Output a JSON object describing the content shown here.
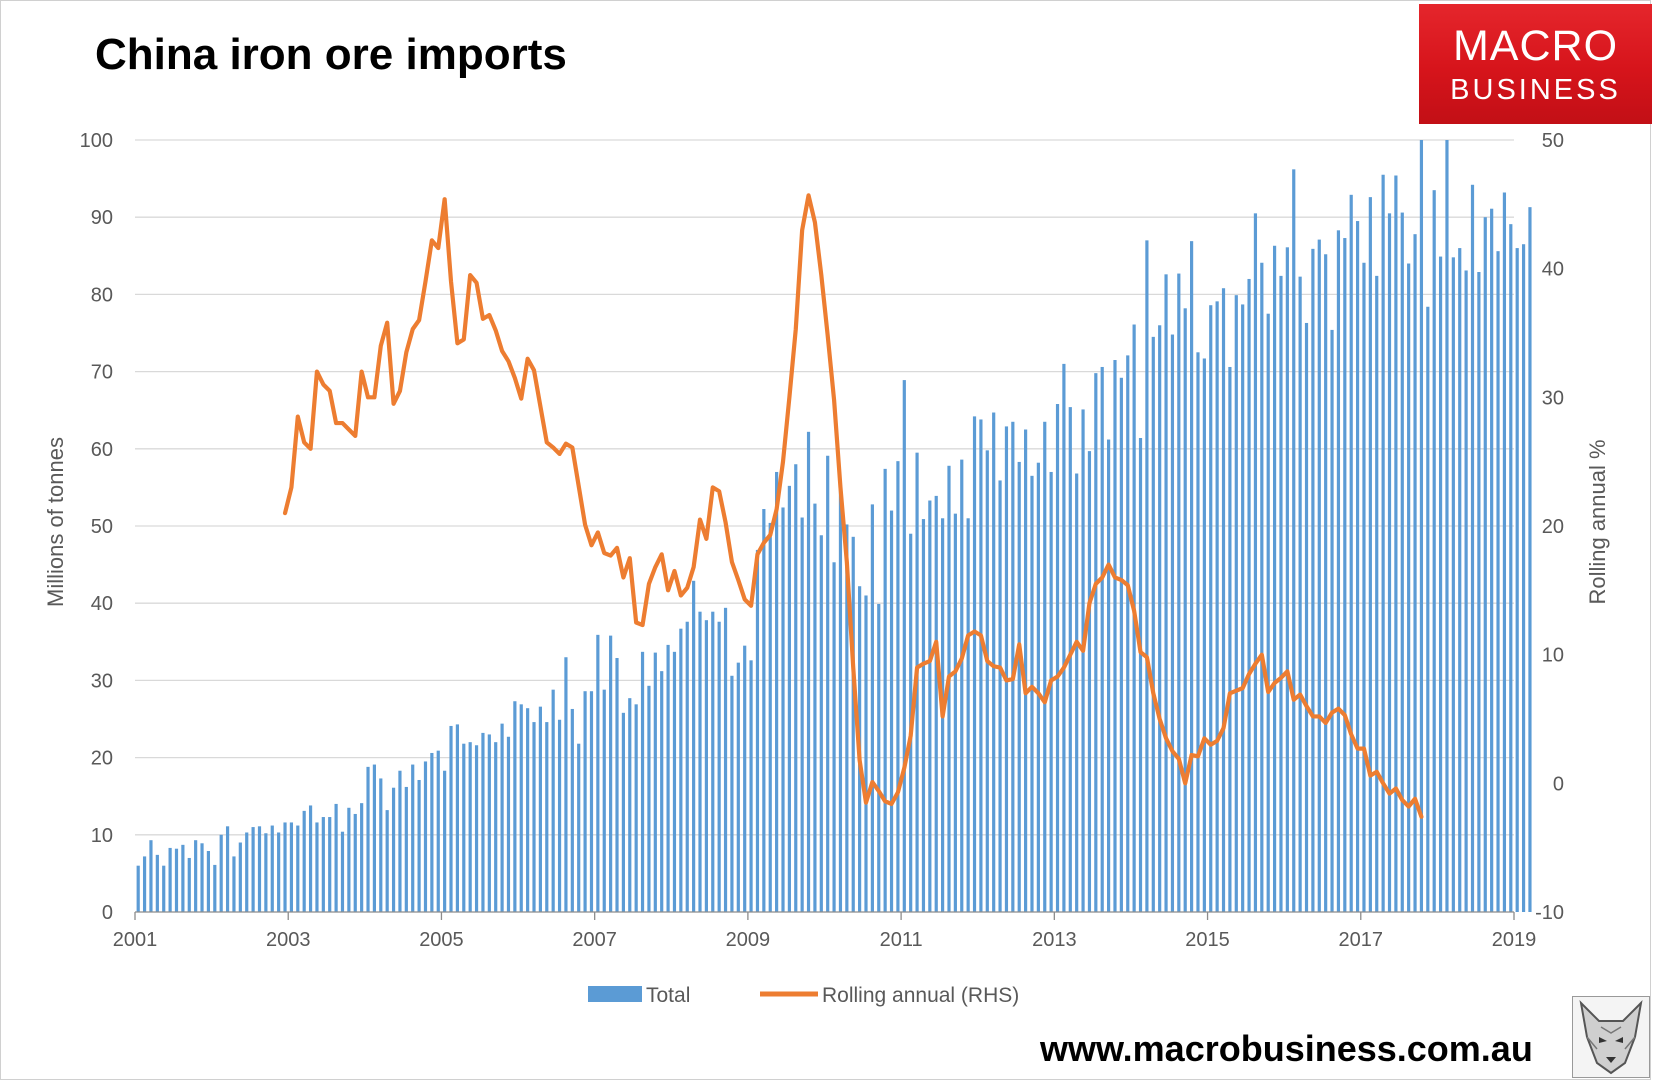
{
  "title": "China iron ore imports",
  "logo": {
    "line1": "MACRO",
    "line2": "BUSINESS"
  },
  "website": "www.macrobusiness.com.au",
  "icons": {
    "logo": "macrobusiness-logo",
    "mascot": "wolf-head-icon"
  },
  "chart_data": {
    "type": "bar+line",
    "x_range": [
      2001,
      2019
    ],
    "x_ticks": [
      "2001",
      "2003",
      "2005",
      "2007",
      "2009",
      "2011",
      "2013",
      "2015",
      "2017",
      "2019"
    ],
    "ylabel": "Millions of tonnes",
    "y2label": "Rolling annual %",
    "ylim": [
      0,
      100
    ],
    "y2lim": [
      -10,
      50
    ],
    "y_ticks": [
      "0",
      "10",
      "20",
      "30",
      "40",
      "50",
      "60",
      "70",
      "80",
      "90",
      "100"
    ],
    "y2_ticks": [
      "-10",
      "0",
      "10",
      "20",
      "30",
      "40",
      "50"
    ],
    "grid": true,
    "legend_position": "bottom",
    "series": [
      {
        "name": "Total",
        "kind": "bar",
        "axis": "left",
        "color": "#5b9bd5",
        "start": "2001-01",
        "frequency": "monthly",
        "values": [
          6.0,
          7.2,
          9.3,
          7.4,
          6.0,
          8.3,
          8.2,
          8.7,
          7.0,
          9.3,
          8.9,
          7.9,
          6.1,
          10.0,
          11.1,
          7.2,
          9.0,
          10.3,
          11.0,
          11.1,
          10.2,
          11.2,
          10.3,
          11.6,
          11.6,
          11.2,
          13.1,
          13.8,
          11.6,
          12.3,
          12.3,
          14.0,
          10.4,
          13.5,
          12.7,
          14.1,
          18.8,
          19.1,
          17.3,
          13.2,
          16.1,
          18.3,
          16.2,
          19.1,
          17.1,
          19.5,
          20.6,
          20.9,
          18.3,
          24.1,
          24.3,
          21.8,
          22.0,
          21.6,
          23.2,
          23.0,
          22.0,
          24.4,
          22.7,
          27.3,
          26.9,
          26.4,
          24.6,
          26.6,
          24.6,
          28.8,
          24.9,
          33.0,
          26.3,
          21.8,
          28.6,
          28.6,
          35.9,
          28.8,
          35.8,
          32.9,
          25.8,
          27.7,
          26.9,
          33.7,
          29.3,
          33.6,
          31.2,
          34.6,
          33.7,
          36.7,
          37.6,
          42.9,
          38.9,
          37.8,
          38.9,
          37.6,
          39.4,
          30.6,
          32.3,
          34.5,
          32.6,
          46.9,
          52.2,
          50.4,
          57.0,
          52.4,
          55.2,
          58.0,
          51.1,
          62.2,
          52.9,
          48.8,
          59.1,
          45.3,
          55.3,
          50.2,
          48.6,
          42.2,
          41.0,
          52.8,
          39.9,
          57.4,
          52.0,
          58.4,
          68.9,
          49.0,
          59.5,
          50.9,
          53.3,
          53.9,
          51.0,
          57.8,
          51.6,
          58.6,
          51.0,
          64.2,
          63.8,
          59.8,
          64.7,
          55.9,
          62.9,
          63.5,
          58.3,
          62.5,
          56.5,
          58.2,
          63.5,
          57.0,
          65.8,
          71.0,
          65.4,
          56.8,
          65.1,
          59.7,
          69.8,
          70.6,
          61.2,
          71.5,
          69.2,
          72.1,
          76.1,
          61.4,
          87.0,
          74.5,
          76.0,
          82.6,
          74.8,
          82.7,
          78.2,
          86.9,
          72.5,
          71.7,
          78.6,
          79.1,
          80.8,
          70.6,
          79.9,
          78.7,
          82.0,
          90.5,
          84.1,
          77.5,
          86.3,
          82.4,
          86.1,
          96.2,
          82.3,
          76.3,
          85.9,
          87.1,
          85.2,
          75.4,
          88.3,
          87.3,
          92.9,
          89.5,
          84.1,
          92.6,
          82.4,
          95.5,
          90.5,
          95.4,
          90.6,
          84.0,
          87.8,
          100.0,
          78.4,
          93.5,
          84.9,
          100.0,
          84.8,
          86.0,
          83.1,
          94.2,
          82.9,
          90.0,
          91.1,
          85.6,
          93.2,
          89.1,
          86.0,
          86.5,
          91.3
        ]
      },
      {
        "name": "Rolling annual (RHS)",
        "kind": "line",
        "axis": "right",
        "color": "#ed7d31",
        "start": "2002-12",
        "frequency": "monthly",
        "values": [
          21.0,
          23.0,
          28.5,
          26.5,
          26.0,
          32.0,
          31.0,
          30.5,
          28.0,
          28.0,
          27.5,
          27.0,
          32.0,
          30.0,
          30.0,
          34.0,
          35.8,
          29.5,
          30.5,
          33.5,
          35.3,
          36.0,
          39.0,
          42.2,
          41.6,
          45.4,
          39.0,
          34.2,
          34.5,
          39.5,
          38.9,
          36.1,
          36.4,
          35.2,
          33.6,
          32.8,
          31.5,
          29.9,
          33.0,
          32.1,
          29.3,
          26.5,
          26.1,
          25.6,
          26.4,
          26.1,
          23.1,
          20.1,
          18.5,
          19.5,
          17.9,
          17.7,
          18.3,
          16.0,
          17.5,
          12.5,
          12.3,
          15.5,
          16.8,
          17.8,
          15.0,
          16.5,
          14.6,
          15.2,
          16.8,
          20.5,
          19.0,
          23.0,
          22.7,
          20.3,
          17.2,
          15.8,
          14.3,
          13.8,
          17.8,
          18.7,
          19.3,
          21.3,
          25.0,
          30.0,
          35.3,
          43.0,
          45.7,
          43.6,
          39.5,
          34.8,
          29.8,
          23.0,
          17.2,
          9.0,
          1.8,
          -1.5,
          0.1,
          -0.6,
          -1.4,
          -1.6,
          -0.7,
          1.2,
          3.7,
          9.0,
          9.3,
          9.5,
          11.0,
          5.2,
          8.3,
          8.7,
          9.7,
          11.5,
          11.8,
          11.5,
          9.5,
          9.1,
          9.0,
          8.0,
          8.1,
          10.8,
          7.0,
          7.5,
          7.0,
          6.3,
          8.0,
          8.3,
          9.0,
          10.0,
          11.0,
          10.3,
          14.0,
          15.5,
          16.0,
          17.0,
          16.0,
          15.8,
          15.4,
          13.4,
          10.2,
          9.8,
          7.0,
          5.0,
          3.5,
          2.5,
          1.9,
          0.0,
          2.2,
          2.1,
          3.5,
          3.0,
          3.3,
          4.3,
          7.0,
          7.2,
          7.4,
          8.5,
          9.3,
          10.0,
          7.1,
          7.8,
          8.2,
          8.7,
          6.5,
          6.9,
          6.0,
          5.2,
          5.2,
          4.7,
          5.5,
          5.8,
          5.3,
          3.8,
          2.7,
          2.7,
          0.6,
          0.9,
          0.0,
          -0.8,
          -0.4,
          -1.3,
          -1.8,
          -1.2,
          -2.6
        ]
      }
    ]
  }
}
